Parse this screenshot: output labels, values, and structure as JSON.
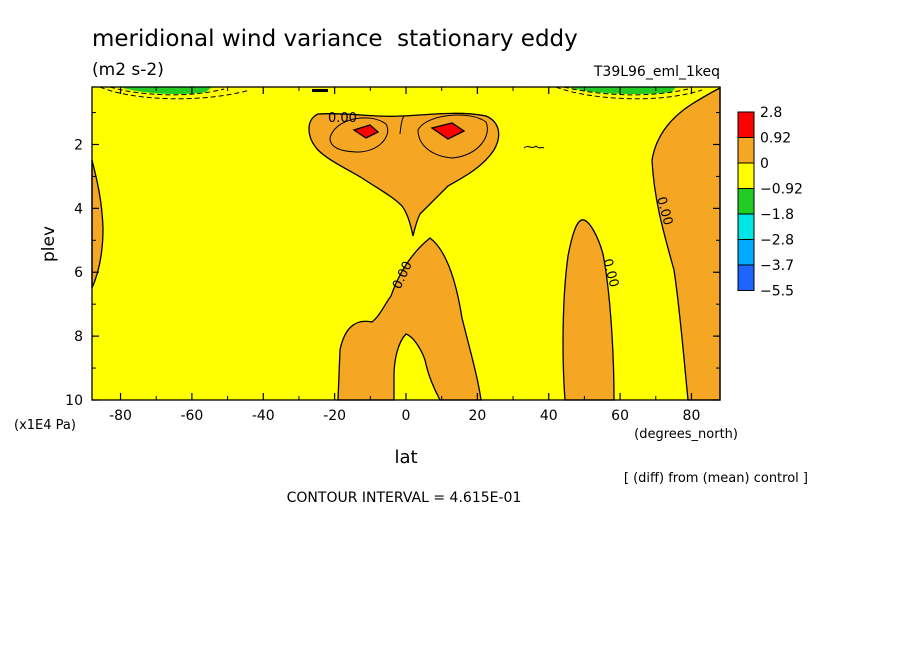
{
  "title": "meridional wind variance  stationary eddy",
  "units": "(m2 s-2)",
  "run_label": "T39L96_eml_1keq",
  "note": "[ (diff) from (mean) control ]",
  "contour_interval": "CONTOUR INTERVAL = 4.615E-01",
  "colors": {
    "background": "#ffff00",
    "positive": "#f5a623",
    "strong_positive": "#ff0000",
    "line": "#000000"
  },
  "chart_data": {
    "type": "contour",
    "xlabel": "lat",
    "xunits": "(degrees_north)",
    "ylabel": "plev",
    "yunits": "(x1E4 Pa)",
    "xlim": [
      -88,
      88
    ],
    "ylim": [
      10,
      0.2
    ],
    "x_ticks": [
      "-80",
      "-60",
      "-40",
      "-20",
      "0",
      "20",
      "40",
      "60",
      "80"
    ],
    "y_ticks": [
      "2",
      "4",
      "6",
      "8",
      "10"
    ],
    "contour_labels": [
      "0.00",
      "0.00",
      "0.00",
      "0.00"
    ],
    "colorbar": {
      "labels": [
        "2.8",
        "0.92",
        "0",
        "−0.92",
        "−1.8",
        "−2.8",
        "−3.7",
        "−5.5"
      ],
      "colors": [
        "#ff0000",
        "#f5a623",
        "#ffff00",
        "#22cc22",
        "#00e6e6",
        "#00aaff",
        "#1e64ff"
      ]
    }
  }
}
